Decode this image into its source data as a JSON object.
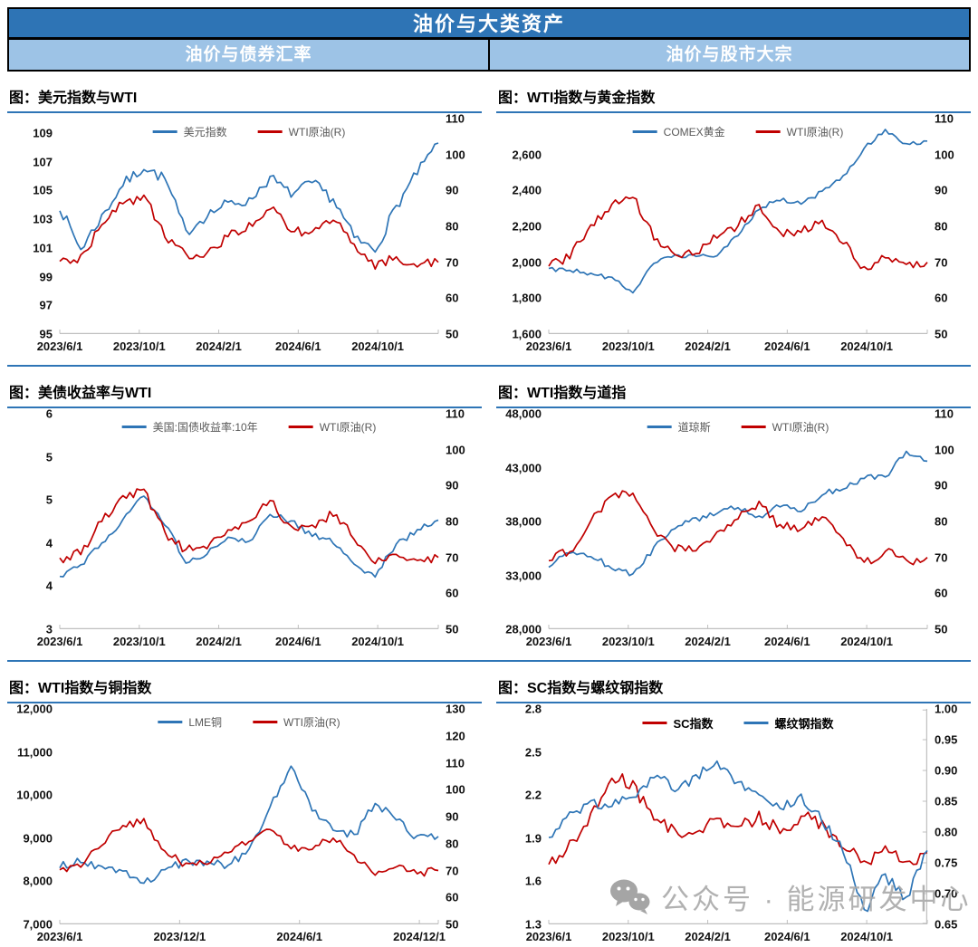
{
  "header": {
    "title": "油价与大类资产",
    "sections": [
      "油价与债券汇率",
      "油价与股市大宗"
    ]
  },
  "palette": {
    "header_bg": "#2E74B5",
    "section_bg": "#9DC3E6",
    "line_blue": "#2E75B6",
    "line_red": "#C00000",
    "axis_gray": "#BFBFBF",
    "legend_text": "#595959",
    "watermark_gray": "#ABABAB"
  },
  "watermark": {
    "icon": "wechat-icon",
    "text": "公众号 · 能源研发中心"
  },
  "months": [
    "2023-06",
    "2023-07",
    "2023-08",
    "2023-09",
    "2023-10",
    "2023-11",
    "2023-12",
    "2024-01",
    "2024-02",
    "2024-03",
    "2024-04",
    "2024-05",
    "2024-06",
    "2024-07",
    "2024-08",
    "2024-09",
    "2024-10",
    "2024-11",
    "2024-12"
  ],
  "chart_data": [
    {
      "type": "line",
      "title": "图：美元指数与WTI",
      "legend": [
        {
          "label": "美元指数",
          "color": "#2E75B6"
        },
        {
          "label": "WTI原油(R)",
          "color": "#C00000"
        }
      ],
      "legend_bold": false,
      "left_axis": {
        "labels": [
          "109",
          "107",
          "105",
          "103",
          "101",
          "99",
          "97",
          "95"
        ],
        "values": [
          109,
          107,
          105,
          103,
          101,
          99,
          97,
          95
        ],
        "ylim": [
          95,
          110
        ]
      },
      "right_axis": {
        "labels": [
          "110",
          "100",
          "90",
          "80",
          "70",
          "60",
          "50"
        ],
        "values": [
          110,
          100,
          90,
          80,
          70,
          60,
          50
        ],
        "ylim": [
          50,
          110
        ]
      },
      "right_axis_line": false,
      "x_labels": [
        "2023/6/1",
        "2023/10/1",
        "2024/2/1",
        "2024/6/1",
        "2024/10/1"
      ],
      "series": [
        {
          "name": "美元指数",
          "axis": "left",
          "color": "#2E75B6",
          "noise": 0.4,
          "monthly_values": [
            103.8,
            100.9,
            103.2,
            105.4,
            106.6,
            105.8,
            102.1,
            103.3,
            104.1,
            104.3,
            105.9,
            104.7,
            105.5,
            104.4,
            101.7,
            100.8,
            103.9,
            106.2,
            108.3
          ]
        },
        {
          "name": "WTI原油(R)",
          "axis": "right",
          "color": "#C00000",
          "noise": 1.4,
          "monthly_values": [
            69.5,
            71.5,
            80.0,
            86.5,
            88.5,
            77.0,
            72.0,
            72.5,
            77.0,
            80.5,
            85.5,
            78.5,
            78.5,
            82.0,
            75.5,
            68.5,
            71.5,
            69.0,
            70.0
          ]
        }
      ]
    },
    {
      "type": "line",
      "title": "图：WTI指数与黄金指数",
      "legend": [
        {
          "label": "COMEX黄金",
          "color": "#2E75B6"
        },
        {
          "label": "WTI原油(R)",
          "color": "#C00000"
        }
      ],
      "legend_bold": false,
      "left_axis": {
        "labels": [
          "2,600",
          "2,400",
          "2,200",
          "2,000",
          "1,800",
          "1,600"
        ],
        "values": [
          2600,
          2400,
          2200,
          2000,
          1800,
          1600
        ],
        "ylim": [
          1600,
          2800
        ]
      },
      "right_axis": {
        "labels": [
          "110",
          "100",
          "90",
          "80",
          "70",
          "60",
          "50"
        ],
        "values": [
          110,
          100,
          90,
          80,
          70,
          60,
          50
        ],
        "ylim": [
          50,
          110
        ]
      },
      "right_axis_line": false,
      "x_labels": [
        "2023/6/1",
        "2023/10/1",
        "2024/2/1",
        "2024/6/1",
        "2024/10/1"
      ],
      "series": [
        {
          "name": "COMEX黄金",
          "axis": "left",
          "color": "#2E75B6",
          "noise": 13,
          "monthly_values": [
            1962,
            1956,
            1936,
            1910,
            1830,
            1990,
            2040,
            2036,
            2032,
            2150,
            2300,
            2348,
            2326,
            2392,
            2480,
            2635,
            2740,
            2655,
            2675
          ]
        },
        {
          "name": "WTI原油(R)",
          "axis": "right",
          "color": "#C00000",
          "noise": 1.4,
          "monthly_values": [
            69.5,
            71.5,
            80.0,
            86.5,
            88.5,
            77.0,
            72.0,
            72.5,
            77.0,
            80.5,
            85.5,
            78.5,
            78.5,
            82.0,
            75.5,
            68.5,
            71.5,
            69.0,
            70.0
          ]
        }
      ]
    },
    {
      "type": "line",
      "title": "图：美债收益率与WTI",
      "legend": [
        {
          "label": "美国:国债收益率:10年",
          "color": "#2E75B6"
        },
        {
          "label": "WTI原油(R)",
          "color": "#C00000"
        }
      ],
      "legend_bold": false,
      "left_axis": {
        "labels": [
          "6",
          "5",
          "5",
          "4",
          "4",
          "3"
        ],
        "values": [
          6,
          5.4,
          4.8,
          4.2,
          3.6,
          3
        ],
        "ylim": [
          3,
          6
        ]
      },
      "right_axis": {
        "labels": [
          "110",
          "100",
          "90",
          "80",
          "70",
          "60",
          "50"
        ],
        "values": [
          110,
          100,
          90,
          80,
          70,
          60,
          50
        ],
        "ylim": [
          50,
          110
        ]
      },
      "right_axis_line": false,
      "x_labels": [
        "2023/6/1",
        "2023/10/1",
        "2024/2/1",
        "2024/6/1",
        "2024/10/1"
      ],
      "series": [
        {
          "name": "美国:国债收益率:10年",
          "axis": "left",
          "color": "#2E75B6",
          "noise": 0.045,
          "monthly_values": [
            3.72,
            3.89,
            4.18,
            4.52,
            4.86,
            4.47,
            3.94,
            4.06,
            4.26,
            4.21,
            4.6,
            4.5,
            4.31,
            4.21,
            3.9,
            3.74,
            4.19,
            4.37,
            4.52
          ]
        },
        {
          "name": "WTI原油(R)",
          "axis": "right",
          "color": "#C00000",
          "noise": 1.4,
          "monthly_values": [
            69.5,
            71.5,
            80.0,
            86.5,
            88.5,
            77.0,
            72.0,
            72.5,
            77.0,
            80.5,
            85.5,
            78.5,
            78.5,
            82.0,
            75.5,
            68.5,
            71.5,
            69.0,
            70.0
          ]
        }
      ]
    },
    {
      "type": "line",
      "title": "图：WTI指数与道指",
      "legend": [
        {
          "label": "道琼斯",
          "color": "#2E75B6"
        },
        {
          "label": "WTI原油(R)",
          "color": "#C00000"
        }
      ],
      "legend_bold": false,
      "left_axis": {
        "labels": [
          "48,000",
          "43,000",
          "38,000",
          "33,000",
          "28,000"
        ],
        "values": [
          48000,
          43000,
          38000,
          33000,
          28000
        ],
        "ylim": [
          28000,
          48000
        ]
      },
      "right_axis": {
        "labels": [
          "110",
          "100",
          "90",
          "80",
          "70",
          "60",
          "50"
        ],
        "values": [
          110,
          100,
          90,
          80,
          70,
          60,
          50
        ],
        "ylim": [
          50,
          110
        ]
      },
      "right_axis_line": false,
      "x_labels": [
        "2023/6/1",
        "2023/10/1",
        "2024/2/1",
        "2024/6/1",
        "2024/10/1"
      ],
      "series": [
        {
          "name": "道琼斯",
          "axis": "left",
          "color": "#2E75B6",
          "noise": 280,
          "monthly_values": [
            33850,
            35200,
            34850,
            33700,
            33100,
            35500,
            37450,
            38250,
            38700,
            39400,
            38350,
            39500,
            38950,
            40550,
            41050,
            42050,
            42150,
            44550,
            43600
          ]
        },
        {
          "name": "WTI原油(R)",
          "axis": "right",
          "color": "#C00000",
          "noise": 1.4,
          "monthly_values": [
            69.5,
            71.5,
            80.0,
            86.5,
            88.5,
            77.0,
            72.0,
            72.5,
            77.0,
            80.5,
            85.5,
            78.5,
            78.5,
            82.0,
            75.5,
            68.5,
            71.5,
            69.0,
            70.0
          ]
        }
      ]
    },
    {
      "type": "line",
      "title": "图：WTI指数与铜指数",
      "legend": [
        {
          "label": "LME铜",
          "color": "#2E75B6"
        },
        {
          "label": "WTI原油(R)",
          "color": "#C00000"
        }
      ],
      "legend_bold": false,
      "left_axis": {
        "labels": [
          "12,000",
          "11,000",
          "10,000",
          "9,000",
          "8,000",
          "7,000"
        ],
        "values": [
          12000,
          11000,
          10000,
          9000,
          8000,
          7000
        ],
        "ylim": [
          7000,
          12000
        ]
      },
      "right_axis": {
        "labels": [
          "130",
          "120",
          "110",
          "100",
          "90",
          "80",
          "70",
          "60",
          "50"
        ],
        "values": [
          130,
          120,
          110,
          100,
          90,
          80,
          70,
          60,
          50
        ],
        "ylim": [
          50,
          130
        ]
      },
      "right_axis_line": false,
      "x_labels": [
        "2023/6/1",
        "2023/12/1",
        "2024/6/1",
        "2024/12/1"
      ],
      "series": [
        {
          "name": "LME铜",
          "axis": "left",
          "color": "#2E75B6",
          "noise": 95,
          "monthly_values": [
            8340,
            8480,
            8320,
            8260,
            7990,
            8240,
            8470,
            8440,
            8380,
            8720,
            9700,
            10650,
            9680,
            9230,
            9060,
            9820,
            9460,
            9010,
            9040
          ]
        },
        {
          "name": "WTI原油(R)",
          "axis": "right",
          "color": "#C00000",
          "noise": 1.4,
          "monthly_values": [
            69.5,
            71.5,
            80.0,
            86.5,
            88.5,
            77.0,
            72.0,
            72.5,
            77.0,
            80.5,
            85.5,
            78.5,
            78.5,
            82.0,
            75.5,
            68.5,
            71.5,
            69.0,
            70.0
          ]
        }
      ]
    },
    {
      "type": "line",
      "title": "图：SC指数与螺纹钢指数",
      "legend": [
        {
          "label": "SC指数",
          "color": "#C00000"
        },
        {
          "label": "螺纹钢指数",
          "color": "#2E75B6"
        }
      ],
      "legend_bold": true,
      "left_axis": {
        "labels": [
          "2.8",
          "2.5",
          "2.2",
          "1.9",
          "1.6",
          "1.3"
        ],
        "values": [
          2.8,
          2.5,
          2.2,
          1.9,
          1.6,
          1.3
        ],
        "ylim": [
          1.3,
          2.8
        ]
      },
      "right_axis": {
        "labels": [
          "1.00",
          "0.95",
          "0.90",
          "0.85",
          "0.80",
          "0.75",
          "0.70",
          "0.65"
        ],
        "values": [
          1.0,
          0.95,
          0.9,
          0.85,
          0.8,
          0.75,
          0.7,
          0.65
        ],
        "ylim": [
          0.65,
          1.0
        ]
      },
      "right_axis_line": true,
      "x_labels": [
        "2023/6/1",
        "2023/10/1",
        "2024/2/1",
        "2024/6/1",
        "2024/10/1"
      ],
      "series": [
        {
          "name": "SC指数",
          "axis": "left",
          "color": "#C00000",
          "noise": 0.05,
          "monthly_values": [
            1.7,
            1.86,
            2.05,
            2.32,
            2.28,
            2.02,
            1.96,
            1.94,
            2.05,
            1.96,
            2.06,
            1.94,
            2.06,
            2.0,
            1.84,
            1.72,
            1.82,
            1.73,
            1.8
          ]
        },
        {
          "name": "螺纹钢指数",
          "axis": "right",
          "color": "#2E75B6",
          "noise": 0.01,
          "monthly_values": [
            0.79,
            0.83,
            0.85,
            0.84,
            0.86,
            0.89,
            0.87,
            0.89,
            0.91,
            0.88,
            0.86,
            0.84,
            0.86,
            0.82,
            0.77,
            0.67,
            0.73,
            0.69,
            0.77
          ]
        }
      ]
    }
  ]
}
